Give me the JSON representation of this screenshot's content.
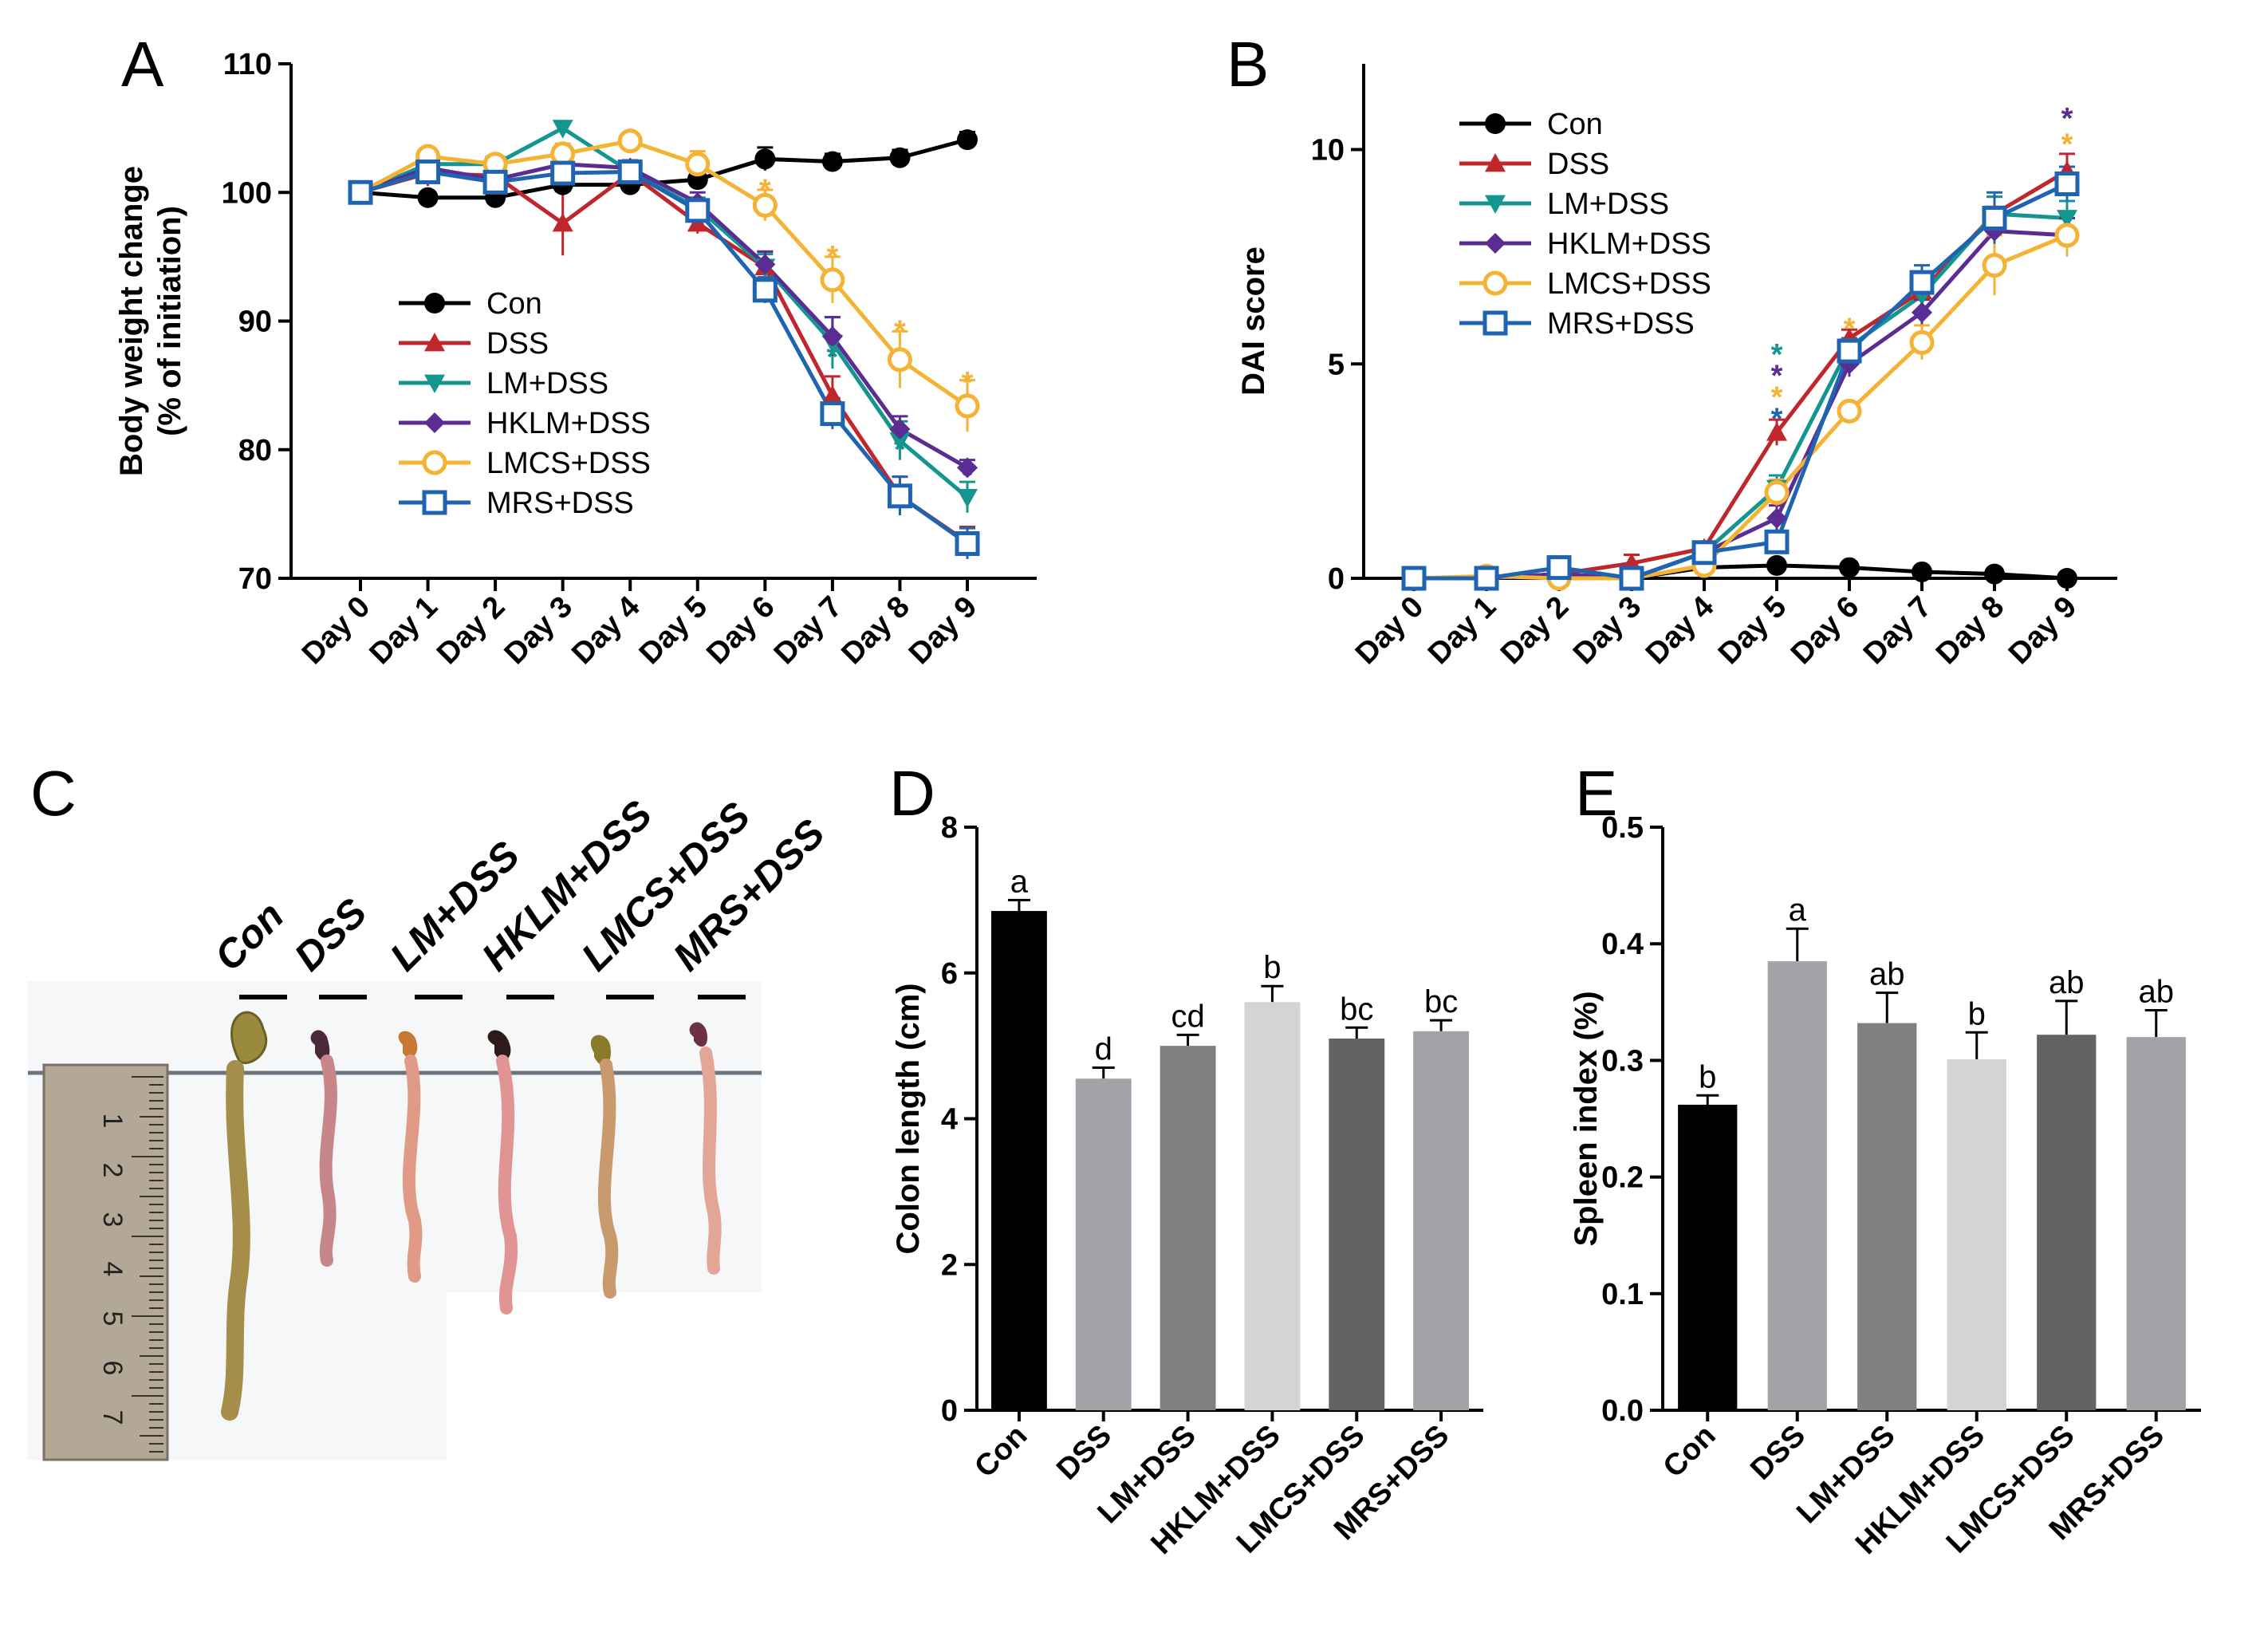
{
  "panel_letters": [
    "A",
    "B",
    "C",
    "D",
    "E"
  ],
  "chart_data": [
    {
      "panel": "A",
      "type": "line",
      "xlabel": "",
      "ylabel_line1": "Body weight change",
      "ylabel_line2": "(% of initiation)",
      "categories": [
        "Day 0",
        "Day 1",
        "Day 2",
        "Day 3",
        "Day 4",
        "Day 5",
        "Day 6",
        "Day 7",
        "Day 8",
        "Day 9"
      ],
      "ylim": [
        70,
        110
      ],
      "yticks": [
        70,
        80,
        90,
        100,
        110
      ],
      "series": [
        {
          "name": "Con",
          "color": "#000000",
          "marker": "circle",
          "values": [
            100,
            99.6,
            99.6,
            100.6,
            100.6,
            101,
            102.6,
            102.4,
            102.7,
            104.1
          ],
          "errors": [
            0.3,
            0.3,
            0.3,
            0.5,
            0.5,
            0.6,
            0.9,
            0.6,
            0.6,
            0.6
          ]
        },
        {
          "name": "DSS",
          "color": "#c0272d",
          "marker": "triangle",
          "values": [
            100,
            101.5,
            101.3,
            97.6,
            101.5,
            97.6,
            94.2,
            84.2,
            76.4,
            72.8
          ],
          "errors": [
            0.3,
            1.0,
            1.0,
            2.5,
            1.0,
            0.8,
            1.2,
            1.5,
            1.5,
            1.2
          ]
        },
        {
          "name": "LM+DSS",
          "color": "#149690",
          "marker": "triangle-down",
          "values": [
            100,
            102.2,
            102.2,
            105,
            101.6,
            98.8,
            94.2,
            88.3,
            80.7,
            76.3
          ],
          "errors": [
            0.3,
            0.6,
            0.6,
            0.5,
            0.6,
            0.8,
            1.0,
            2.0,
            1.5,
            1.2
          ]
        },
        {
          "name": "HKLM+DSS",
          "color": "#5b2c92",
          "marker": "diamond",
          "values": [
            100,
            101.9,
            101,
            102.2,
            101.9,
            99.2,
            94.4,
            88.8,
            81.6,
            78.6
          ],
          "errors": [
            0.3,
            0.6,
            0.6,
            0.6,
            0.6,
            0.8,
            1.0,
            1.5,
            1.0,
            0.6
          ]
        },
        {
          "name": "LMCS+DSS",
          "color": "#f5b335",
          "marker": "circle-open",
          "values": [
            100,
            102.8,
            102.2,
            103,
            104,
            102.2,
            99,
            93.2,
            87,
            83.4
          ],
          "errors": [
            0.3,
            0.6,
            0.6,
            0.8,
            0.6,
            1.0,
            1.2,
            1.8,
            2.2,
            2.0
          ]
        },
        {
          "name": "MRS+DSS",
          "color": "#1e64b0",
          "marker": "square-open",
          "values": [
            100,
            101.6,
            100.8,
            101.5,
            101.6,
            98.6,
            92.4,
            82.8,
            76.4,
            72.7
          ],
          "errors": [
            0.3,
            0.6,
            0.6,
            0.6,
            0.6,
            0.8,
            1.0,
            1.2,
            1.5,
            1.2
          ]
        }
      ],
      "asterisks": [
        {
          "day": "Day 6",
          "value": 100.8,
          "color": "#f5b335",
          "text": "*"
        },
        {
          "day": "Day 7",
          "value": 95.6,
          "color": "#f5b335",
          "text": "*"
        },
        {
          "day": "Day 7",
          "value": 88.8,
          "color": "#5b2c92",
          "text": "*"
        },
        {
          "day": "Day 7",
          "value": 87.8,
          "color": "#149690",
          "text": "*"
        },
        {
          "day": "Day 8",
          "value": 89.8,
          "color": "#f5b335",
          "text": "*"
        },
        {
          "day": "Day 8",
          "value": 81.9,
          "color": "#5b2c92",
          "text": "*"
        },
        {
          "day": "Day 8",
          "value": 80.6,
          "color": "#149690",
          "text": "*"
        },
        {
          "day": "Day 9",
          "value": 85.8,
          "color": "#f5b335",
          "text": "*"
        },
        {
          "day": "Day 9",
          "value": 78.6,
          "color": "#5b2c92",
          "text": "*"
        }
      ]
    },
    {
      "panel": "B",
      "type": "line",
      "xlabel": "",
      "ylabel": "DAI score",
      "categories": [
        "Day 0",
        "Day 1",
        "Day 2",
        "Day 3",
        "Day 4",
        "Day 5",
        "Day 6",
        "Day 7",
        "Day 8",
        "Day 9"
      ],
      "ylim": [
        0,
        12
      ],
      "yticks": [
        0,
        5,
        10
      ],
      "series": [
        {
          "name": "Con",
          "color": "#000000",
          "marker": "circle",
          "values": [
            0,
            0,
            0.1,
            0,
            0.25,
            0.3,
            0.25,
            0.15,
            0.1,
            0
          ],
          "errors": [
            0.05,
            0.05,
            0.1,
            0.05,
            0.1,
            0.1,
            0.1,
            0.05,
            0.05,
            0.05
          ]
        },
        {
          "name": "DSS",
          "color": "#c0272d",
          "marker": "triangle",
          "values": [
            0,
            0,
            0.1,
            0.35,
            0.7,
            3.4,
            5.6,
            6.7,
            8.5,
            9.5
          ],
          "errors": [
            0.05,
            0.05,
            0.1,
            0.2,
            0.1,
            0.3,
            0.2,
            0.3,
            0.4,
            0.4
          ]
        },
        {
          "name": "LM+DSS",
          "color": "#149690",
          "marker": "triangle-down",
          "values": [
            0,
            0,
            0.1,
            0,
            0.6,
            2.1,
            5.4,
            6.6,
            8.5,
            8.4
          ],
          "errors": [
            0.05,
            0.05,
            0.1,
            0.05,
            0.1,
            0.3,
            0.2,
            0.3,
            0.4,
            0.4
          ]
        },
        {
          "name": "HKLM+DSS",
          "color": "#5b2c92",
          "marker": "diamond",
          "values": [
            0,
            0,
            0.1,
            0,
            0.6,
            1.4,
            5.0,
            6.2,
            8.1,
            8.0
          ],
          "errors": [
            0.05,
            0.05,
            0.1,
            0.05,
            0.1,
            0.3,
            0.3,
            0.3,
            0.4,
            0.4
          ]
        },
        {
          "name": "LMCS+DSS",
          "color": "#f5b335",
          "marker": "circle-open",
          "values": [
            0,
            0.05,
            0,
            0,
            0.3,
            2.0,
            3.9,
            5.5,
            7.3,
            8.0
          ],
          "errors": [
            0.05,
            0.05,
            0.05,
            0.05,
            0.1,
            0.3,
            0.2,
            0.4,
            0.7,
            0.5
          ]
        },
        {
          "name": "MRS+DSS",
          "color": "#1e64b0",
          "marker": "square-open",
          "values": [
            0,
            0,
            0.25,
            0,
            0.6,
            0.85,
            5.3,
            6.9,
            8.4,
            9.2
          ],
          "errors": [
            0.05,
            0.05,
            0.1,
            0.05,
            0.1,
            0.2,
            0.3,
            0.4,
            0.6,
            0.4
          ]
        }
      ],
      "asterisks": [
        {
          "day": "Day 5",
          "value": 5.4,
          "color": "#149690",
          "text": "*"
        },
        {
          "day": "Day 5",
          "value": 4.9,
          "color": "#5b2c92",
          "text": "*"
        },
        {
          "day": "Day 5",
          "value": 4.4,
          "color": "#f5b335",
          "text": "*"
        },
        {
          "day": "Day 5",
          "value": 3.9,
          "color": "#1e64b0",
          "text": "*"
        },
        {
          "day": "Day 6",
          "value": 6.0,
          "color": "#f5b335",
          "text": "*"
        },
        {
          "day": "Day 9",
          "value": 10.9,
          "color": "#5b2c92",
          "text": "*"
        },
        {
          "day": "Day 9",
          "value": 10.3,
          "color": "#f5b335",
          "text": "*"
        }
      ]
    },
    {
      "panel": "D",
      "type": "bar",
      "xlabel": "",
      "ylabel": "Colon length (cm)",
      "categories": [
        "Con",
        "DSS",
        "LM+DSS",
        "HKLM+DSS",
        "LMCS+DSS",
        "MRS+DSS"
      ],
      "values": [
        6.85,
        4.55,
        5.0,
        5.6,
        5.1,
        5.2
      ],
      "errors": [
        0.15,
        0.15,
        0.15,
        0.22,
        0.15,
        0.15
      ],
      "bar_colors": [
        "#000000",
        "#a2a2a7",
        "#808080",
        "#d4d4d4",
        "#636363",
        "#a2a2a7"
      ],
      "sig_letters": [
        "a",
        "d",
        "cd",
        "b",
        "bc",
        "bc"
      ],
      "ylim": [
        0,
        8
      ],
      "yticks": [
        0,
        2,
        4,
        6,
        8
      ]
    },
    {
      "panel": "E",
      "type": "bar",
      "xlabel": "",
      "ylabel": "Spleen index (%)",
      "categories": [
        "Con",
        "DSS",
        "LM+DSS",
        "HKLM+DSS",
        "LMCS+DSS",
        "MRS+DSS"
      ],
      "values": [
        0.262,
        0.385,
        0.332,
        0.301,
        0.322,
        0.32
      ],
      "errors": [
        0.008,
        0.028,
        0.026,
        0.023,
        0.029,
        0.023
      ],
      "bar_colors": [
        "#000000",
        "#a2a2a7",
        "#808080",
        "#d4d4d4",
        "#636363",
        "#a2a2a7"
      ],
      "sig_letters": [
        "b",
        "a",
        "ab",
        "b",
        "ab",
        "ab"
      ],
      "ylim": [
        0,
        0.5
      ],
      "yticks": [
        0.0,
        0.1,
        0.2,
        0.3,
        0.4,
        0.5
      ],
      "ytick_labels": [
        "0.0",
        "0.1",
        "0.2",
        "0.3",
        "0.4",
        "0.5"
      ]
    }
  ],
  "photo_panel": {
    "panel": "C",
    "group_labels": [
      "Con",
      "DSS",
      "LM+DSS",
      "HKLM+DSS",
      "LMCS+DSS",
      "MRS+DSS"
    ],
    "ruler_numbers": [
      "1",
      "2",
      "3",
      "4",
      "5",
      "6",
      "7"
    ]
  }
}
